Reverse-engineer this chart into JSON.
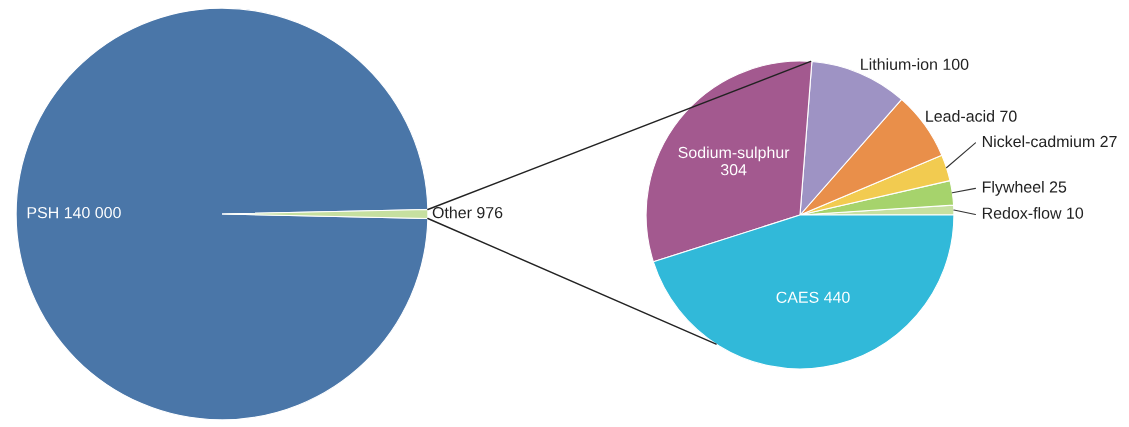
{
  "chart_data": [
    {
      "type": "pie",
      "categories": [
        "PSH",
        "Other"
      ],
      "values": [
        140000,
        976
      ],
      "colors": [
        "#4a76a8",
        "#c6e0a0"
      ],
      "value_labels": [
        "140 000",
        "976"
      ],
      "legend": false
    },
    {
      "type": "pie",
      "categories": [
        "Redox-flow",
        "Flywheel",
        "Nickel-cadmium",
        "Lead-acid",
        "Lithium-ion",
        "Sodium-sulphur",
        "CAES"
      ],
      "values": [
        10,
        25,
        27,
        70,
        100,
        304,
        440
      ],
      "colors": [
        "#c6e0a0",
        "#a6d36c",
        "#f2cb50",
        "#e98f4a",
        "#9e93c4",
        "#a3598f",
        "#31b9d9"
      ],
      "value_labels": [
        "10",
        "25",
        "27",
        "70",
        "100",
        "304",
        "440"
      ],
      "legend": false
    }
  ]
}
